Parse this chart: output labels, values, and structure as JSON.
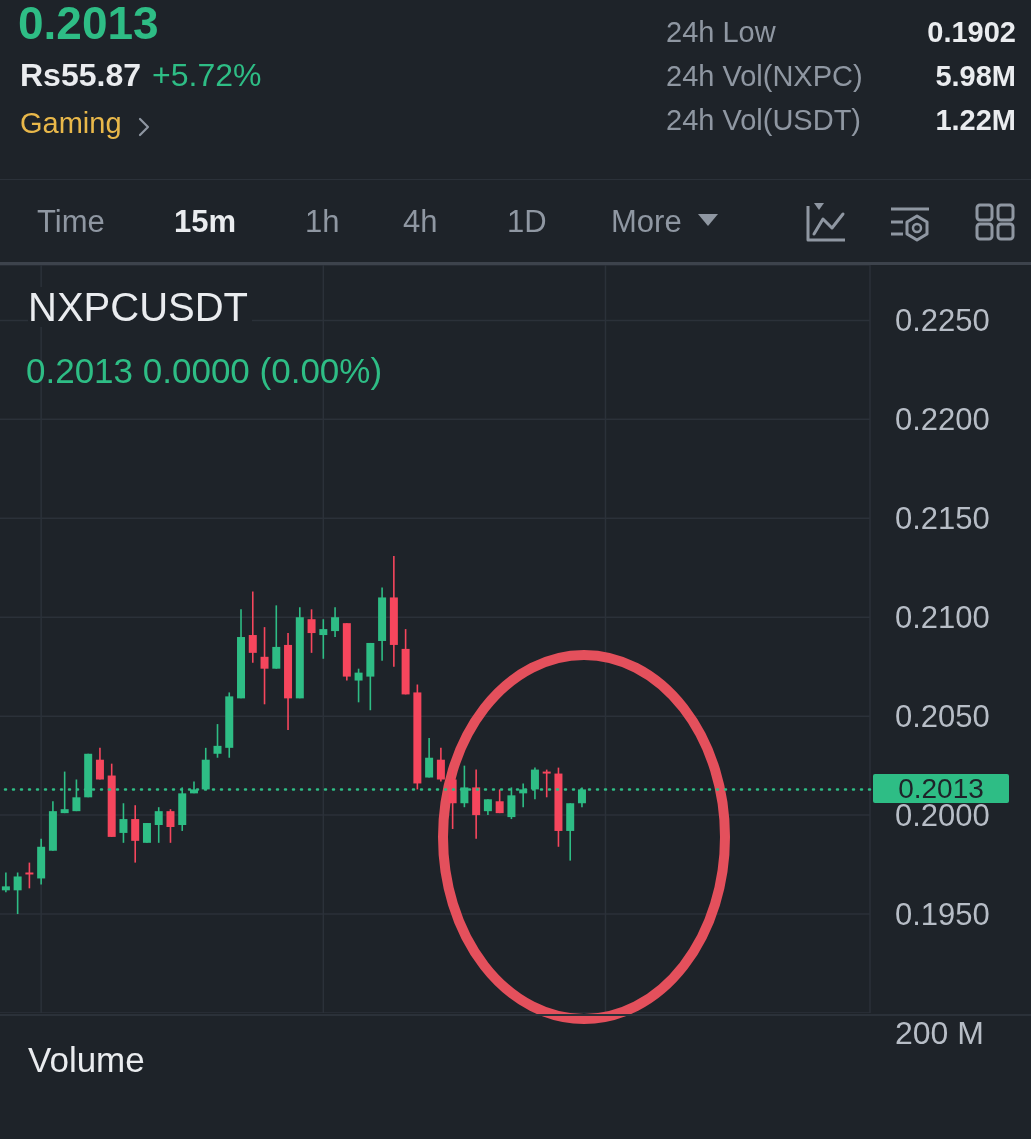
{
  "chart_data": [
    {
      "type": "other",
      "title": "0.2013",
      "annotations": [
        "Rs55.87",
        "+5.72%",
        "Gaming",
        "24h Low",
        "0.1902",
        "24h Vol(NXPC)",
        "5.98M",
        "24h Vol(USDT)",
        "1.22M",
        "Time",
        "15m",
        "1h",
        "4h",
        "1D",
        "More"
      ]
    },
    {
      "type": "candlestick",
      "title": "NXPCUSDT",
      "subtitle": "0.2013 0.0000 (0.00%)",
      "categories": [
        null,
        null,
        null,
        null,
        null,
        null,
        null,
        null,
        null,
        null,
        null,
        null,
        null,
        null,
        null,
        null,
        null,
        null,
        null,
        null,
        null,
        null,
        null,
        null,
        null,
        null,
        null,
        null,
        null,
        null,
        null,
        null,
        null,
        null,
        null,
        null,
        null,
        null,
        null,
        null,
        null,
        null,
        null,
        null,
        null,
        null,
        null,
        null,
        null,
        null,
        null,
        null,
        null,
        null,
        null,
        null,
        null,
        null,
        null,
        null,
        null,
        null,
        null,
        null,
        null,
        null,
        null,
        null,
        null,
        null,
        null,
        null,
        null,
        null
      ],
      "ohlc": [
        [
          0.1962,
          0.1971,
          0.1961,
          0.1964
        ],
        [
          0.1962,
          0.1971,
          0.195,
          0.1969
        ],
        [
          0.1971,
          0.1976,
          0.1963,
          0.197
        ],
        [
          0.1968,
          0.1988,
          0.1965,
          0.1984
        ],
        [
          0.1982,
          0.2007,
          0.1982,
          0.2002
        ],
        [
          0.2001,
          0.2022,
          0.2001,
          0.2003
        ],
        [
          0.2002,
          0.2018,
          0.2002,
          0.2009
        ],
        [
          0.2009,
          0.2031,
          0.2009,
          0.2031
        ],
        [
          0.2028,
          0.2034,
          0.2018,
          0.2018
        ],
        [
          0.202,
          0.2026,
          0.1989,
          0.1989
        ],
        [
          0.1991,
          0.2006,
          0.1986,
          0.1998
        ],
        [
          0.1998,
          0.2005,
          0.1976,
          0.1987
        ],
        [
          0.1986,
          0.1996,
          0.1986,
          0.1996
        ],
        [
          0.1995,
          0.2004,
          0.1986,
          0.2002
        ],
        [
          0.2002,
          0.2003,
          0.1986,
          0.1994
        ],
        [
          0.1995,
          0.2014,
          0.1992,
          0.2011
        ],
        [
          0.2011,
          0.2017,
          0.2011,
          0.2013
        ],
        [
          0.2013,
          0.2034,
          0.2013,
          0.2028
        ],
        [
          0.2031,
          0.2046,
          0.2029,
          0.2035
        ],
        [
          0.2034,
          0.2062,
          0.2029,
          0.206
        ],
        [
          0.2059,
          0.2104,
          0.2059,
          0.209
        ],
        [
          0.2091,
          0.2113,
          0.2077,
          0.2082
        ],
        [
          0.208,
          0.2095,
          0.2056,
          0.2074
        ],
        [
          0.2074,
          0.2106,
          0.2074,
          0.2085
        ],
        [
          0.2086,
          0.2092,
          0.2043,
          0.2059
        ],
        [
          0.2059,
          0.2105,
          0.2059,
          0.21
        ],
        [
          0.2099,
          0.2104,
          0.2082,
          0.2092
        ],
        [
          0.2091,
          0.2099,
          0.2079,
          0.2094
        ],
        [
          0.2093,
          0.2105,
          0.209,
          0.21
        ],
        [
          0.2097,
          0.2097,
          0.2068,
          0.207
        ],
        [
          0.2068,
          0.2074,
          0.2057,
          0.2072
        ],
        [
          0.207,
          0.2087,
          0.2053,
          0.2087
        ],
        [
          0.2088,
          0.2115,
          0.2078,
          0.211
        ],
        [
          0.211,
          0.2131,
          0.2075,
          0.2086
        ],
        [
          0.2084,
          0.2094,
          0.2061,
          0.2061
        ],
        [
          0.2062,
          0.2066,
          0.2013,
          0.2016
        ],
        [
          0.2019,
          0.2039,
          0.2019,
          0.2029
        ],
        [
          0.2028,
          0.2034,
          0.2017,
          0.2018
        ],
        [
          0.2018,
          0.2023,
          0.1993,
          0.2006
        ],
        [
          0.2006,
          0.2025,
          0.2004,
          0.2014
        ],
        [
          0.2014,
          0.2023,
          0.1988,
          0.2
        ],
        [
          0.2002,
          0.2008,
          0.2,
          0.2008
        ],
        [
          0.2007,
          0.2013,
          0.2001,
          0.2001
        ],
        [
          0.1999,
          0.2014,
          0.1998,
          0.201
        ],
        [
          0.2011,
          0.2016,
          0.2004,
          0.2013
        ],
        [
          0.2013,
          0.2024,
          0.2008,
          0.2023
        ],
        [
          0.2022,
          0.2023,
          0.2009,
          0.2021
        ],
        [
          0.2021,
          0.2024,
          0.1984,
          0.1992
        ],
        [
          0.1992,
          0.2006,
          0.1977,
          0.2006
        ],
        [
          0.2006,
          0.2014,
          0.2004,
          0.2013
        ],
        null,
        null,
        null,
        null,
        null,
        null,
        null,
        null,
        null,
        null,
        null,
        null,
        null,
        null,
        null,
        null,
        null,
        null,
        null,
        null,
        null,
        null,
        null,
        null
      ],
      "colors": [
        "#2ebd85",
        "#2ebd85",
        "#f6465d",
        "#2ebd85",
        "#2ebd85",
        "#2ebd85",
        "#2ebd85",
        "#2ebd85",
        "#f6465d",
        "#f6465d",
        "#2ebd85",
        "#f6465d",
        "#2ebd85",
        "#2ebd85",
        "#f6465d",
        "#2ebd85",
        "#2ebd85",
        "#2ebd85",
        "#2ebd85",
        "#2ebd85",
        "#2ebd85",
        "#f6465d",
        "#f6465d",
        "#2ebd85",
        "#f6465d",
        "#2ebd85",
        "#f6465d",
        "#2ebd85",
        "#2ebd85",
        "#f6465d",
        "#2ebd85",
        "#2ebd85",
        "#2ebd85",
        "#f6465d",
        "#f6465d",
        "#f6465d",
        "#2ebd85",
        "#f6465d",
        "#f6465d",
        "#2ebd85",
        "#f6465d",
        "#2ebd85",
        "#f6465d",
        "#2ebd85",
        "#2ebd85",
        "#2ebd85",
        "#f6465d",
        "#f6465d",
        "#2ebd85",
        "#2ebd85",
        null,
        null,
        null,
        null,
        null,
        null,
        null,
        null,
        null,
        null,
        null,
        null,
        null,
        null,
        null,
        null,
        null,
        null,
        null,
        null,
        null,
        null,
        null,
        null
      ],
      "ylim": [
        0.19,
        0.2278
      ],
      "yticks": [
        {
          "value": 0.195,
          "label": "0.1950"
        },
        {
          "value": 0.2,
          "label": "0.2000"
        },
        {
          "value": 0.205,
          "label": "0.2050"
        },
        {
          "value": 0.21,
          "label": "0.2100"
        },
        {
          "value": 0.215,
          "label": "0.2150"
        },
        {
          "value": 0.22,
          "label": "0.2200"
        },
        {
          "value": 0.225,
          "label": "0.2250"
        }
      ],
      "tick_labels": "y",
      "grid": true,
      "ref_lines": [
        {
          "axis": "y",
          "value": 0.2013,
          "label": "0.2013",
          "color": "#2ebd85",
          "line_style": "dotted"
        }
      ]
    },
    {
      "type": "other",
      "title": "Volume",
      "annotations": [
        "200 M"
      ]
    }
  ]
}
